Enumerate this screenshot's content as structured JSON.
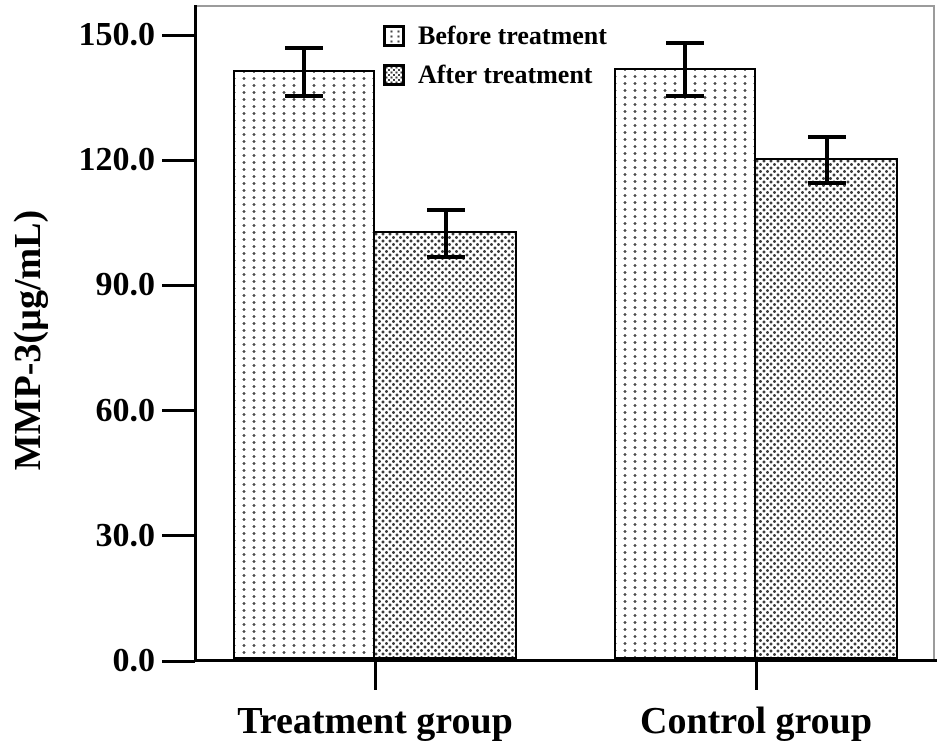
{
  "figure": {
    "background": "#ffffff",
    "frame_color": "#9b9b9b",
    "axis_color": "#000000",
    "text_color": "#000000"
  },
  "chart_data": {
    "type": "bar",
    "title": "",
    "xlabel": "",
    "ylabel": "MMP-3(µg/mL)",
    "categories": [
      "Treatment group",
      "Control group"
    ],
    "series": [
      {
        "name": "Before treatment",
        "pattern": "dotted-columns",
        "values": [
          141.1,
          141.7
        ],
        "errors": [
          6.3,
          6.9
        ]
      },
      {
        "name": "After treatment",
        "pattern": "dense-dots",
        "values": [
          102.5,
          120.1
        ],
        "errors": [
          6.1,
          6.0
        ]
      }
    ],
    "error_bars": true,
    "ylim": [
      0,
      150
    ],
    "yticks": [
      {
        "value": 0,
        "label": "0.0"
      },
      {
        "value": 30,
        "label": "30.0"
      },
      {
        "value": 60,
        "label": "60.0"
      },
      {
        "value": 90,
        "label": "90.0"
      },
      {
        "value": 120,
        "label": "120.0"
      },
      {
        "value": 150,
        "label": "150.0"
      }
    ],
    "grid": false,
    "legend_position": "top-center-inside",
    "legend_border": false
  }
}
